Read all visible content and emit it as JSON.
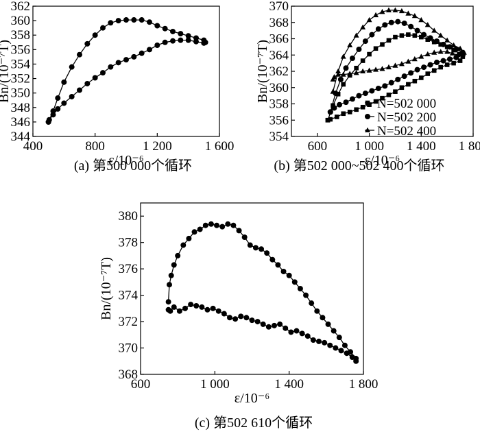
{
  "chart_data": [
    {
      "type": "scatter",
      "caption": "(a) 第500 000个循环",
      "xlabel": "ε/10⁻⁶",
      "ylabel": "Bn/(10⁻⁷T)",
      "xlim": [
        400,
        1600
      ],
      "ylim": [
        344,
        362
      ],
      "xticks": [
        400,
        800,
        1200,
        1600
      ],
      "xtick_labels": [
        "400",
        "800",
        "1 200",
        "1 600"
      ],
      "yticks": [
        344,
        346,
        348,
        350,
        352,
        354,
        356,
        358,
        360,
        362
      ],
      "ytick_labels": [
        "344",
        "346",
        "348",
        "350",
        "352",
        "354",
        "356",
        "358",
        "360",
        "362"
      ],
      "series": [
        {
          "marker": "circle",
          "x": [
            500,
            530,
            560,
            600,
            650,
            700,
            750,
            800,
            850,
            900,
            950,
            1000,
            1050,
            1100,
            1150,
            1200,
            1250,
            1300,
            1350,
            1400,
            1450,
            1500,
            1510,
            1500,
            1450,
            1400,
            1350,
            1300,
            1250,
            1200,
            1150,
            1100,
            1050,
            1000,
            950,
            900,
            850,
            800,
            750,
            700,
            650,
            600,
            560,
            530,
            505,
            500
          ],
          "y": [
            346.0,
            347.5,
            349.3,
            351.5,
            353.6,
            355.3,
            356.8,
            358.0,
            359.0,
            359.7,
            360.0,
            360.1,
            360.1,
            360.1,
            359.8,
            359.3,
            358.9,
            358.5,
            358.2,
            357.9,
            357.6,
            357.3,
            357.0,
            356.9,
            357.1,
            357.3,
            357.3,
            357.2,
            357.0,
            356.6,
            356.0,
            355.5,
            355.0,
            354.6,
            354.2,
            353.6,
            352.8,
            352.1,
            351.3,
            350.4,
            349.5,
            348.6,
            347.8,
            347.0,
            346.3,
            346.0
          ]
        }
      ]
    },
    {
      "type": "scatter",
      "caption": "(b) 第502 000~502 400个循环",
      "xlabel": "ε/10⁻⁶",
      "ylabel": "Bn/(10⁻⁷T)",
      "xlim": [
        400,
        1800
      ],
      "ylim": [
        354,
        370
      ],
      "xticks": [
        600,
        1000,
        1400,
        1800
      ],
      "xtick_labels": [
        "600",
        "1 000",
        "1 400",
        "1 800"
      ],
      "yticks": [
        354,
        356,
        358,
        360,
        362,
        364,
        366,
        368,
        370
      ],
      "ytick_labels": [
        "354",
        "356",
        "358",
        "360",
        "362",
        "364",
        "366",
        "368",
        "370"
      ],
      "legend": {
        "position": "right"
      },
      "series": [
        {
          "name": "N=502 000",
          "marker": "square",
          "x": [
            680,
            720,
            760,
            800,
            850,
            900,
            950,
            1000,
            1050,
            1100,
            1150,
            1200,
            1250,
            1300,
            1350,
            1400,
            1450,
            1500,
            1550,
            1600,
            1650,
            1700,
            1720,
            1700,
            1650,
            1600,
            1550,
            1500,
            1450,
            1400,
            1350,
            1300,
            1250,
            1200,
            1150,
            1100,
            1050,
            1000,
            950,
            900,
            850,
            800,
            750,
            700,
            680
          ],
          "y": [
            356.0,
            357.8,
            359.2,
            360.4,
            361.5,
            362.4,
            363.3,
            364.1,
            364.8,
            365.3,
            365.8,
            366.2,
            366.4,
            366.5,
            366.4,
            366.2,
            365.9,
            365.6,
            365.3,
            365.0,
            364.6,
            364.1,
            363.8,
            363.3,
            363.0,
            362.8,
            362.5,
            362.1,
            361.7,
            361.2,
            360.8,
            360.4,
            360.0,
            359.5,
            359.1,
            358.7,
            358.3,
            357.9,
            357.6,
            357.3,
            357.0,
            356.8,
            356.4,
            356.1,
            356.0
          ]
        },
        {
          "name": "N=502 200",
          "marker": "circle",
          "x": [
            700,
            740,
            780,
            820,
            870,
            920,
            970,
            1020,
            1070,
            1120,
            1170,
            1220,
            1270,
            1320,
            1370,
            1420,
            1470,
            1520,
            1570,
            1620,
            1670,
            1720,
            1720,
            1670,
            1620,
            1570,
            1520,
            1470,
            1420,
            1370,
            1320,
            1270,
            1220,
            1170,
            1120,
            1070,
            1020,
            970,
            920,
            870,
            820,
            770,
            730,
            700
          ],
          "y": [
            357.0,
            359.3,
            361.0,
            362.4,
            363.6,
            364.7,
            365.7,
            366.5,
            367.2,
            367.7,
            368.0,
            368.1,
            367.9,
            367.5,
            367.0,
            366.5,
            366.1,
            365.7,
            365.3,
            365.0,
            364.7,
            364.3,
            364.0,
            363.7,
            363.5,
            363.3,
            363.1,
            362.8,
            362.5,
            362.2,
            361.8,
            361.4,
            361.0,
            360.6,
            360.2,
            359.9,
            359.6,
            359.3,
            359.0,
            358.6,
            358.2,
            357.9,
            357.5,
            357.0
          ]
        },
        {
          "name": "N=502 400",
          "marker": "triangle",
          "x": [
            720,
            760,
            800,
            850,
            900,
            950,
            1000,
            1050,
            1100,
            1150,
            1200,
            1250,
            1300,
            1350,
            1400,
            1450,
            1500,
            1550,
            1600,
            1650,
            1700,
            1730,
            1720,
            1680,
            1640,
            1600,
            1550,
            1500,
            1450,
            1400,
            1350,
            1300,
            1250,
            1200,
            1150,
            1100,
            1050,
            1000,
            950,
            900,
            850,
            800,
            760,
            730,
            720
          ],
          "y": [
            359.5,
            362.0,
            363.8,
            365.2,
            366.4,
            367.4,
            368.3,
            368.9,
            369.3,
            369.5,
            369.5,
            369.4,
            369.1,
            368.8,
            368.3,
            367.7,
            367.0,
            366.4,
            365.8,
            365.2,
            364.8,
            364.3,
            364.1,
            364.0,
            364.2,
            364.4,
            364.4,
            364.3,
            364.1,
            363.8,
            363.5,
            363.2,
            362.9,
            362.7,
            362.5,
            362.3,
            362.2,
            362.1,
            362.0,
            361.8,
            361.7,
            361.6,
            361.6,
            361.3,
            361.0
          ]
        }
      ]
    },
    {
      "type": "scatter",
      "caption": "(c) 第502 610个循环",
      "xlabel": "ε/10⁻⁶",
      "ylabel": "Bn/(10⁻⁷T)",
      "xlim": [
        600,
        1800
      ],
      "ylim": [
        368,
        381
      ],
      "xticks": [
        600,
        1000,
        1400,
        1800
      ],
      "xtick_labels": [
        "600",
        "1 000",
        "1 400",
        "1 800"
      ],
      "yticks": [
        368,
        370,
        372,
        374,
        376,
        378,
        380
      ],
      "ytick_labels": [
        "368",
        "370",
        "372",
        "374",
        "376",
        "378",
        "380"
      ],
      "series": [
        {
          "marker": "circle",
          "x": [
            750,
            755,
            765,
            780,
            800,
            830,
            860,
            890,
            920,
            950,
            980,
            1010,
            1040,
            1070,
            1100,
            1130,
            1160,
            1190,
            1220,
            1250,
            1280,
            1310,
            1340,
            1370,
            1400,
            1430,
            1460,
            1490,
            1520,
            1550,
            1580,
            1610,
            1640,
            1670,
            1700,
            1730,
            1760,
            1760,
            1740,
            1710,
            1680,
            1650,
            1620,
            1590,
            1560,
            1530,
            1500,
            1470,
            1440,
            1410,
            1380,
            1350,
            1320,
            1290,
            1260,
            1230,
            1200,
            1170,
            1140,
            1110,
            1080,
            1050,
            1020,
            990,
            960,
            930,
            900,
            870,
            840,
            810,
            780,
            760,
            750
          ],
          "y": [
            373.5,
            374.8,
            375.5,
            376.3,
            377.0,
            377.8,
            378.3,
            378.8,
            379.0,
            379.3,
            379.4,
            379.3,
            379.2,
            379.4,
            379.3,
            378.9,
            378.4,
            377.8,
            377.6,
            377.5,
            377.2,
            376.7,
            376.3,
            375.8,
            375.5,
            375.0,
            374.5,
            374.0,
            373.4,
            372.8,
            372.3,
            371.8,
            371.3,
            370.8,
            370.2,
            369.7,
            369.2,
            369.0,
            369.3,
            369.6,
            369.8,
            370.0,
            370.2,
            370.4,
            370.5,
            370.6,
            370.9,
            371.1,
            371.3,
            371.2,
            371.5,
            371.8,
            371.7,
            371.6,
            371.8,
            372.0,
            372.1,
            372.3,
            372.4,
            372.2,
            372.3,
            372.6,
            372.8,
            373.0,
            372.9,
            373.1,
            373.2,
            373.3,
            373.0,
            372.8,
            373.1,
            372.8,
            372.9
          ]
        }
      ]
    }
  ]
}
